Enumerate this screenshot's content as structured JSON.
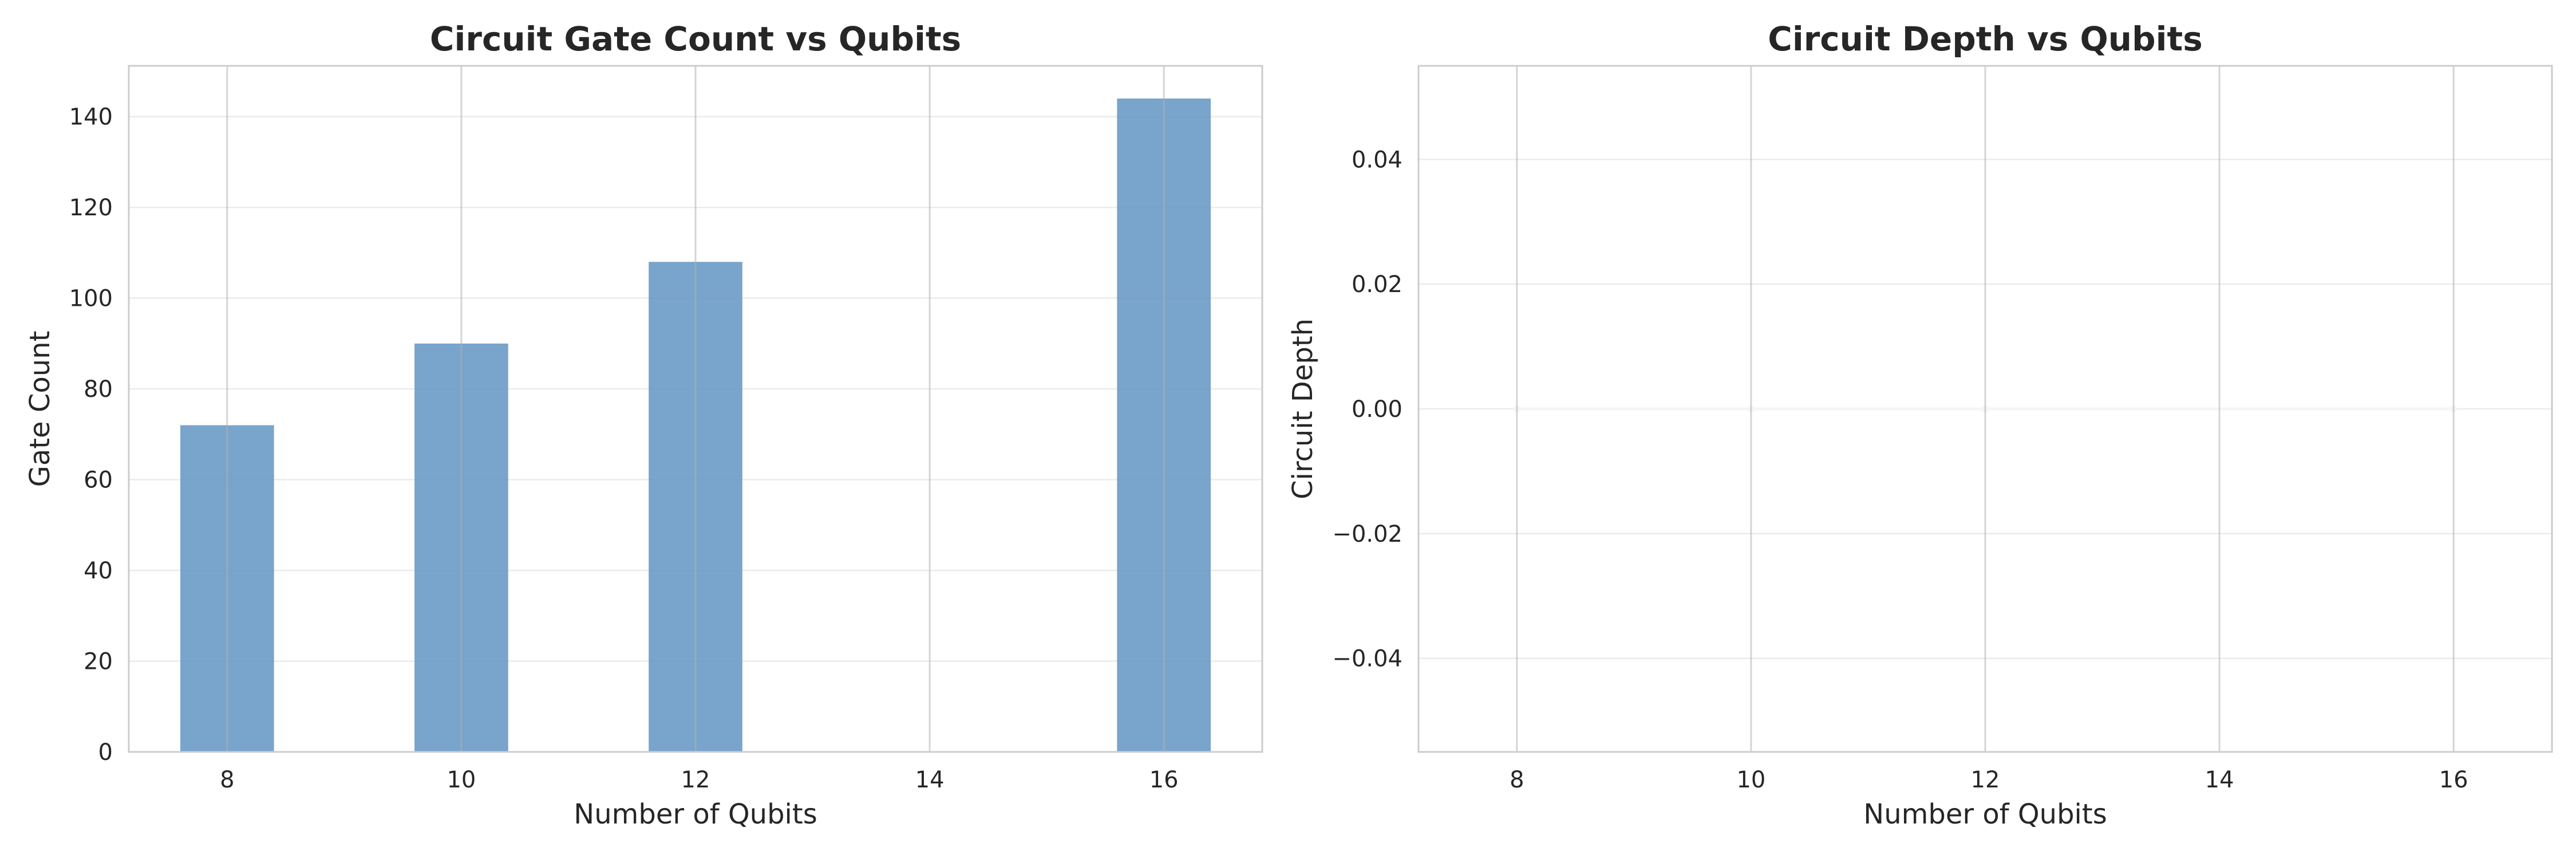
{
  "chart_data": [
    {
      "type": "bar",
      "title": "Circuit Gate Count vs Qubits",
      "xlabel": "Number of Qubits",
      "ylabel": "Gate Count",
      "x": [
        8,
        10,
        12,
        16
      ],
      "values": [
        72,
        90,
        108,
        144
      ],
      "xticks": [
        8,
        10,
        12,
        14,
        16
      ],
      "xticklabels": [
        "8",
        "10",
        "12",
        "14",
        "16"
      ],
      "yticks": [
        0,
        20,
        40,
        60,
        80,
        100,
        120,
        140
      ],
      "yticklabels": [
        "0",
        "20",
        "40",
        "60",
        "80",
        "100",
        "120",
        "140"
      ],
      "xlim": [
        7.16,
        16.84
      ],
      "ylim": [
        0,
        151.2
      ],
      "bar_width": 0.8,
      "color": "#6a9ac6",
      "grid": true
    },
    {
      "type": "line",
      "title": "Circuit Depth vs Qubits",
      "xlabel": "Number of Qubits",
      "ylabel": "Circuit Depth",
      "x": [
        8,
        10,
        12,
        16
      ],
      "values": [
        0,
        0,
        0,
        0
      ],
      "xticks": [
        8,
        10,
        12,
        14,
        16
      ],
      "xticklabels": [
        "8",
        "10",
        "12",
        "14",
        "16"
      ],
      "yticks": [
        -0.04,
        -0.02,
        0,
        0.02,
        0.04
      ],
      "yticklabels": [
        "−0.04",
        "−0.02",
        "0.00",
        "0.02",
        "0.04"
      ],
      "xlim": [
        7.16,
        16.84
      ],
      "ylim": [
        -0.055,
        0.055
      ],
      "color": "#f5f5f5",
      "grid": true
    }
  ]
}
